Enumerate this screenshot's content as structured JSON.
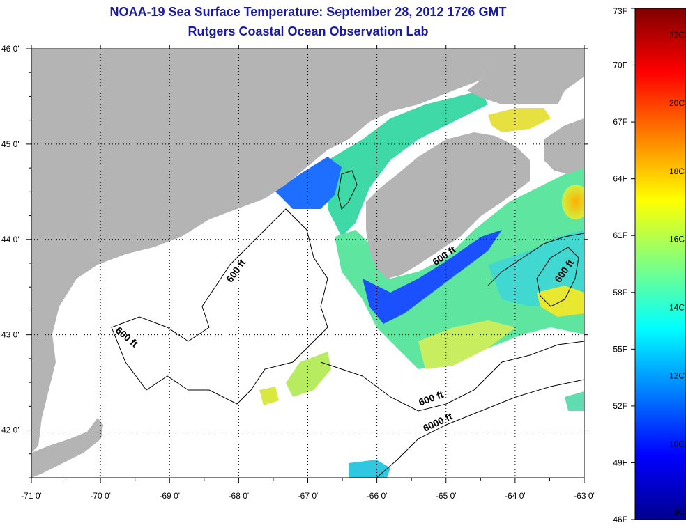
{
  "title": {
    "line1": "NOAA-19 Sea Surface Temperature:  September 28, 2012 1726 GMT",
    "line2": "Rutgers Coastal Ocean Observation Lab"
  },
  "map": {
    "lon_range": [
      -71,
      -63
    ],
    "lat_range": [
      41.5,
      46
    ],
    "lon_ticks": [
      {
        "value": -71,
        "label": "-71 0'"
      },
      {
        "value": -70,
        "label": "-70 0'"
      },
      {
        "value": -69,
        "label": "-69 0'"
      },
      {
        "value": -68,
        "label": "-68 0'"
      },
      {
        "value": -67,
        "label": "-67 0'"
      },
      {
        "value": -66,
        "label": "-66 0'"
      },
      {
        "value": -65,
        "label": "-65 0'"
      },
      {
        "value": -64,
        "label": "-64 0'"
      },
      {
        "value": -63,
        "label": "-63 0'"
      }
    ],
    "lat_ticks": [
      {
        "value": 46,
        "label": "46 0'"
      },
      {
        "value": 45,
        "label": "45 0'"
      },
      {
        "value": 44,
        "label": "44 0'"
      },
      {
        "value": 43,
        "label": "43 0'"
      },
      {
        "value": 42,
        "label": "42 0'"
      }
    ],
    "grid": "dotted",
    "land_color": "#b4b4b4",
    "contour_labels": [
      {
        "text": "600 ft",
        "lon": -68.0,
        "lat": 43.65,
        "angle": -55
      },
      {
        "text": "600 ft",
        "lon": -69.65,
        "lat": 42.95,
        "angle": 40
      },
      {
        "text": "600 ft",
        "lon": -65.0,
        "lat": 43.8,
        "angle": -35
      },
      {
        "text": "600 ft",
        "lon": -63.25,
        "lat": 43.65,
        "angle": -55
      },
      {
        "text": "600 ft",
        "lon": -65.2,
        "lat": 42.3,
        "angle": -20
      },
      {
        "text": "6000 ft",
        "lon": -65.1,
        "lat": 42.05,
        "angle": -25
      }
    ]
  },
  "colorbar": {
    "colors": [
      "#00008f",
      "#0000ff",
      "#0080ff",
      "#00ffff",
      "#80ff80",
      "#ffff00",
      "#ff8000",
      "#ff0000",
      "#800000"
    ],
    "fahrenheit": [
      {
        "value": 73,
        "label": "73F"
      },
      {
        "value": 70,
        "label": "70F"
      },
      {
        "value": 67,
        "label": "67F"
      },
      {
        "value": 64,
        "label": "64F"
      },
      {
        "value": 61,
        "label": "61F"
      },
      {
        "value": 58,
        "label": "58F"
      },
      {
        "value": 55,
        "label": "55F"
      },
      {
        "value": 52,
        "label": "52F"
      },
      {
        "value": 49,
        "label": "49F"
      },
      {
        "value": 46,
        "label": "46F"
      }
    ],
    "celsius": [
      {
        "value": 22,
        "label": "22C"
      },
      {
        "value": 20,
        "label": "20C"
      },
      {
        "value": 18,
        "label": "18C"
      },
      {
        "value": 16,
        "label": "16C"
      },
      {
        "value": 14,
        "label": "14C"
      },
      {
        "value": 12,
        "label": "12C"
      },
      {
        "value": 10,
        "label": "10C"
      },
      {
        "value": 8,
        "label": "8C"
      }
    ]
  }
}
